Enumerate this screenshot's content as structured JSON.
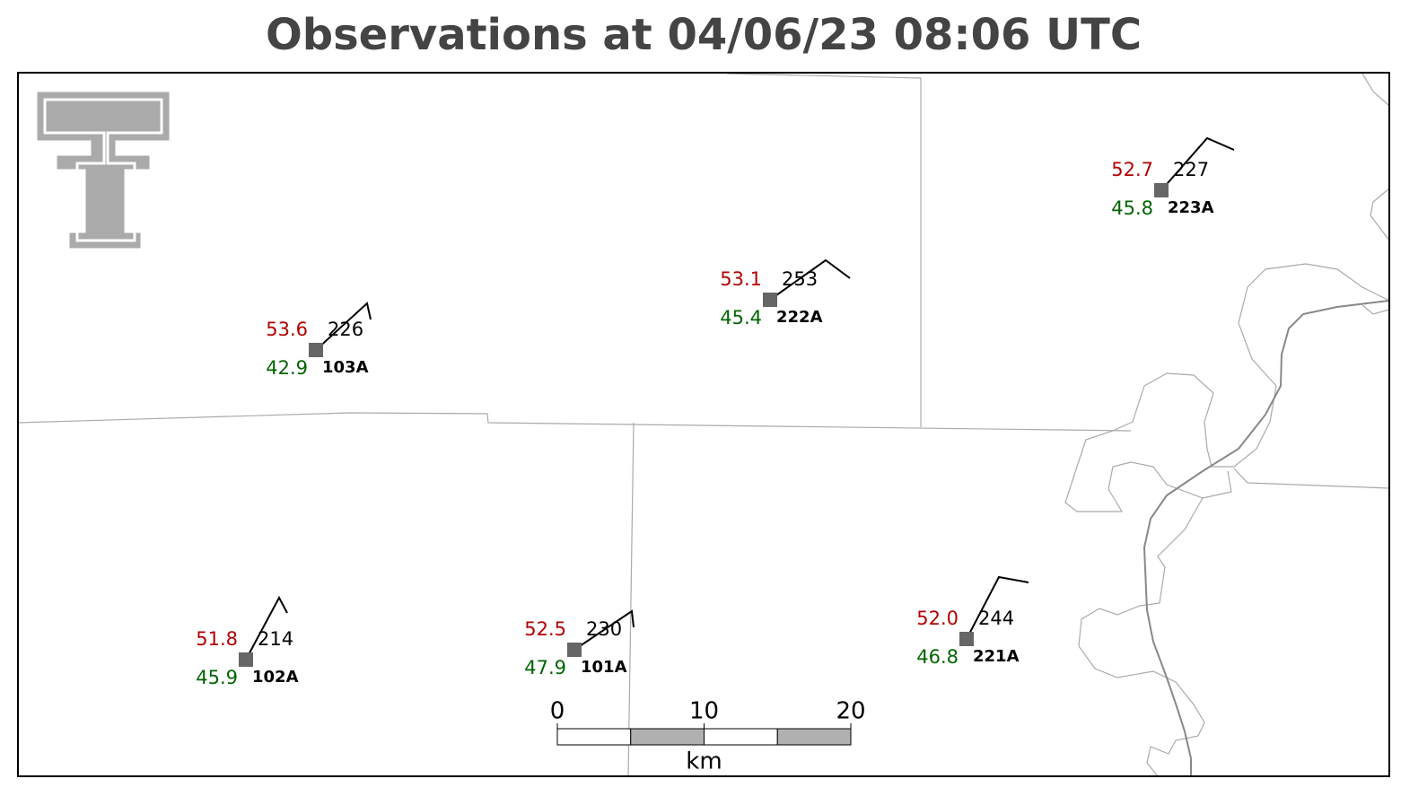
{
  "title": "Observations at 04/06/23 08:06 UTC",
  "stations": [
    {
      "id": "103A",
      "temperature": "53.6",
      "dewpoint": "42.9",
      "value": "226"
    },
    {
      "id": "222A",
      "temperature": "53.1",
      "dewpoint": "45.4",
      "value": "253"
    },
    {
      "id": "223A",
      "temperature": "52.7",
      "dewpoint": "45.8",
      "value": "227"
    },
    {
      "id": "102A",
      "temperature": "51.8",
      "dewpoint": "45.9",
      "value": "214"
    },
    {
      "id": "101A",
      "temperature": "52.5",
      "dewpoint": "47.9",
      "value": "230"
    },
    {
      "id": "221A",
      "temperature": "52.0",
      "dewpoint": "46.8",
      "value": "244"
    }
  ],
  "scale": {
    "ticks": [
      0,
      10,
      20
    ],
    "unit": "km"
  }
}
